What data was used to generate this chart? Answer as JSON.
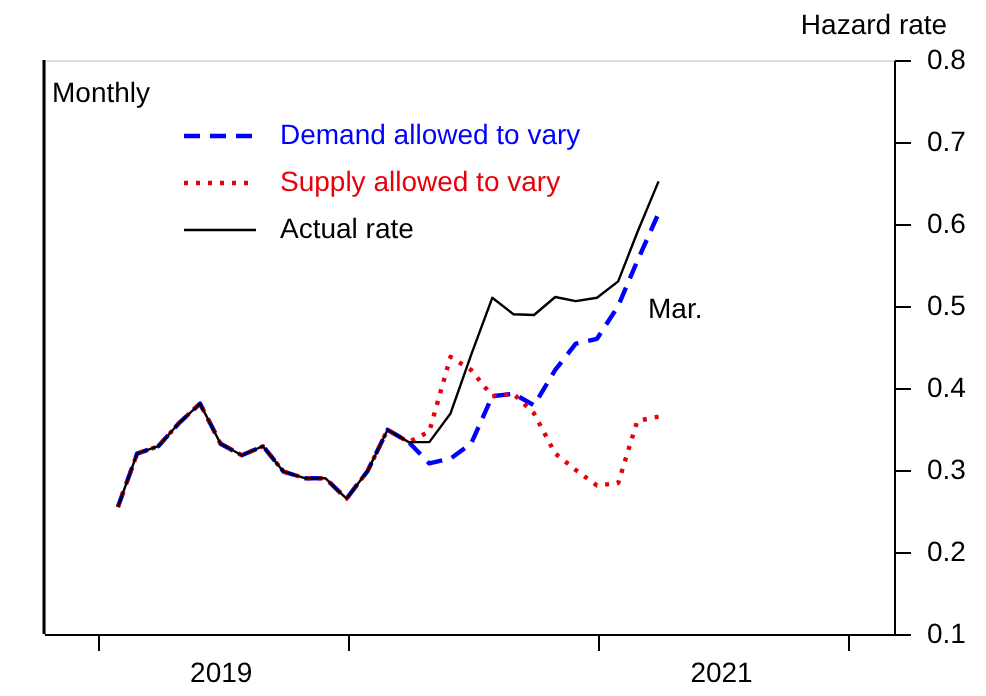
{
  "chart_data": {
    "type": "line",
    "ylabel": "Hazard rate",
    "x": [
      "2019-01-31",
      "2019-02-28",
      "2019-03-31",
      "2019-04-30",
      "2019-05-31",
      "2019-06-30",
      "2019-07-31",
      "2019-08-31",
      "2019-09-30",
      "2019-10-31",
      "2019-11-30",
      "2019-12-31",
      "2020-01-31",
      "2020-02-29",
      "2020-03-31",
      "2020-04-30",
      "2020-05-31",
      "2020-06-30",
      "2020-07-31",
      "2020-08-31",
      "2020-09-30",
      "2020-10-31",
      "2020-11-30",
      "2020-12-31",
      "2021-01-31",
      "2021-02-28",
      "2021-03-31"
    ],
    "series": [
      {
        "name": "Demand allowed to vary",
        "color": "#0000ff",
        "line_style": "dashed",
        "values": [
          0.255,
          0.32,
          0.329,
          0.357,
          0.381,
          0.332,
          0.318,
          0.329,
          0.298,
          0.29,
          0.29,
          0.265,
          0.299,
          0.349,
          0.334,
          0.308,
          0.314,
          0.332,
          0.39,
          0.393,
          0.379,
          0.422,
          0.454,
          0.46,
          0.5,
          0.555,
          0.613
        ]
      },
      {
        "name": "Supply allowed to vary",
        "color": "#e8000b",
        "line_style": "dotted",
        "values": [
          0.255,
          0.32,
          0.329,
          0.357,
          0.381,
          0.332,
          0.318,
          0.329,
          0.298,
          0.29,
          0.29,
          0.265,
          0.299,
          0.349,
          0.334,
          0.347,
          0.438,
          0.422,
          0.39,
          0.393,
          0.369,
          0.32,
          0.3,
          0.281,
          0.284,
          0.36,
          0.365
        ]
      },
      {
        "name": "Actual rate",
        "color": "#000000",
        "line_style": "solid",
        "values": [
          0.255,
          0.32,
          0.329,
          0.357,
          0.381,
          0.332,
          0.318,
          0.329,
          0.298,
          0.29,
          0.29,
          0.265,
          0.299,
          0.349,
          0.334,
          0.334,
          0.369,
          0.44,
          0.51,
          0.49,
          0.489,
          0.511,
          0.506,
          0.51,
          0.53,
          0.59,
          0.652
        ]
      }
    ],
    "xlim": [
      "2018-10-15",
      "2022-03-10"
    ],
    "xticks": [
      {
        "value": "2019-01-01",
        "label": null
      },
      {
        "value": "2019-07-01",
        "label": "2019"
      },
      {
        "value": "2020-01-01",
        "label": null
      },
      {
        "value": "2021-01-01",
        "label": null
      },
      {
        "value": "2021-07-01",
        "label": "2021"
      },
      {
        "value": "2022-01-01",
        "label": null
      }
    ],
    "ylim": [
      0.1,
      0.8
    ],
    "yticks": [
      0.1,
      0.2,
      0.3,
      0.4,
      0.5,
      0.6,
      0.7,
      0.8
    ],
    "grid": false,
    "legend": "top left",
    "marker": "none",
    "annotations": [
      "Monthly",
      "Mar."
    ]
  }
}
